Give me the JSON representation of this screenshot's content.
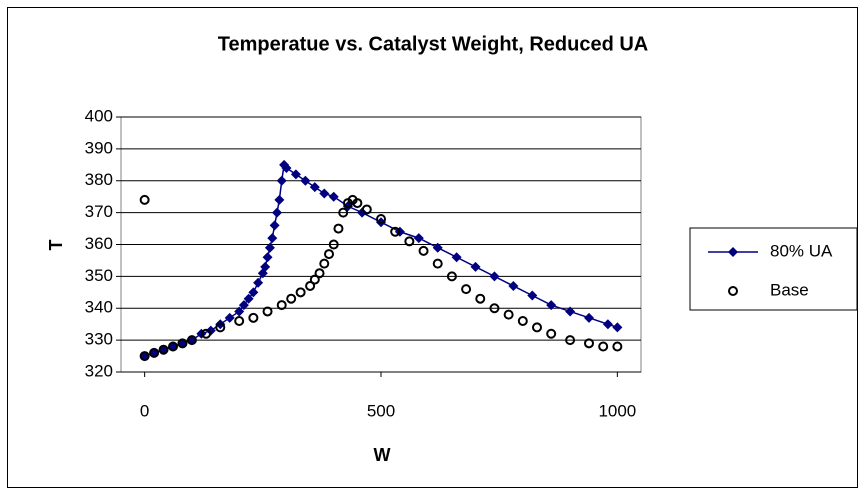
{
  "chart_data": {
    "type": "scatter",
    "title": "Temperatue vs. Catalyst Weight, Reduced UA",
    "xlabel": "W",
    "ylabel": "T",
    "xlim": [
      -50,
      1050
    ],
    "xticks": [
      0,
      500,
      1000
    ],
    "ylim": [
      320,
      400
    ],
    "yticks": [
      320,
      330,
      340,
      350,
      360,
      370,
      380,
      390,
      400
    ],
    "grid": true,
    "legend": "right",
    "series": [
      {
        "name": "80% UA",
        "color": "#000080",
        "marker": "diamond",
        "line": true,
        "x": [
          0,
          20,
          40,
          60,
          80,
          100,
          120,
          140,
          160,
          180,
          200,
          210,
          220,
          230,
          240,
          250,
          255,
          260,
          265,
          270,
          275,
          280,
          285,
          290,
          295,
          300,
          320,
          340,
          360,
          380,
          400,
          430,
          460,
          500,
          540,
          580,
          620,
          660,
          700,
          740,
          780,
          820,
          860,
          900,
          940,
          980,
          1000
        ],
        "values": [
          325,
          326,
          327,
          328,
          329,
          330,
          332,
          333,
          335,
          337,
          339,
          341,
          343,
          345,
          348,
          351,
          353,
          356,
          359,
          362,
          366,
          370,
          374,
          380,
          385,
          384,
          382,
          380,
          378,
          376,
          375,
          372,
          370,
          367,
          364,
          362,
          359,
          356,
          353,
          350,
          347,
          344,
          341,
          339,
          337,
          335,
          334
        ]
      },
      {
        "name": "Base",
        "color": "#000000",
        "marker": "circle",
        "line": false,
        "x": [
          0,
          0,
          20,
          40,
          60,
          80,
          100,
          130,
          160,
          200,
          230,
          260,
          290,
          310,
          330,
          350,
          360,
          370,
          380,
          390,
          400,
          410,
          420,
          430,
          440,
          450,
          470,
          500,
          530,
          560,
          590,
          620,
          650,
          680,
          710,
          740,
          770,
          800,
          830,
          860,
          900,
          940,
          970,
          1000
        ],
        "values": [
          374,
          325,
          326,
          327,
          328,
          329,
          330,
          332,
          334,
          336,
          337,
          339,
          341,
          343,
          345,
          347,
          349,
          351,
          354,
          357,
          360,
          365,
          370,
          373,
          374,
          373,
          371,
          368,
          364,
          361,
          358,
          354,
          350,
          346,
          343,
          340,
          338,
          336,
          334,
          332,
          330,
          329,
          328,
          328
        ]
      }
    ]
  }
}
